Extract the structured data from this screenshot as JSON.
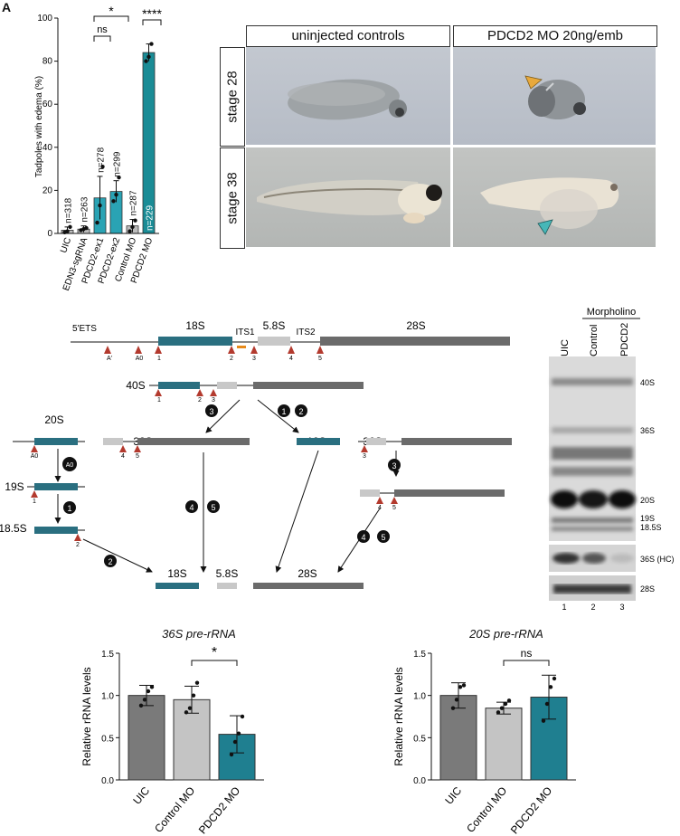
{
  "panel_label": "A",
  "edema_chart": {
    "ylabel": "Tadpoles with edema (%)",
    "y_ticks": [
      "0",
      "20",
      "40",
      "60",
      "80",
      "100"
    ],
    "categories": [
      "UIC",
      "EDN3-sgRNA",
      "PDCD2-ex1",
      "PDCD2-ex2",
      "Control MO",
      "PDCD2 MO"
    ],
    "n_labels": [
      "n=318",
      "n=263",
      "n=278",
      "n=299",
      "n=287",
      "n=229"
    ],
    "sig": {
      "star1": "*",
      "ns": "ns",
      "star4": "****"
    }
  },
  "chart_data": [
    {
      "type": "bar",
      "title": "",
      "ylabel": "Tadpoles with edema (%)",
      "ylim": [
        0,
        100
      ],
      "categories": [
        "UIC",
        "EDN3-sgRNA",
        "PDCD2-ex1",
        "PDCD2-ex2",
        "Control MO",
        "PDCD2 MO"
      ],
      "values": [
        1.5,
        2.0,
        16.5,
        19.5,
        3.5,
        84
      ],
      "errors": [
        1.5,
        1.5,
        10,
        5,
        3,
        4
      ],
      "points": [
        [
          0.5,
          1,
          3
        ],
        [
          1.5,
          2,
          2.5
        ],
        [
          5,
          13,
          31
        ],
        [
          15,
          18,
          26
        ],
        [
          1,
          3,
          6
        ],
        [
          80,
          82,
          88
        ]
      ]
    },
    {
      "type": "bar",
      "title": "36S pre-rRNA",
      "ylabel": "Relative rRNA levels",
      "ylim": [
        0,
        1.5
      ],
      "categories": [
        "UIC",
        "Control MO",
        "PDCD2 MO"
      ],
      "values": [
        1.0,
        0.95,
        0.54
      ],
      "errors": [
        0.12,
        0.16,
        0.22
      ],
      "points": [
        [
          0.88,
          0.95,
          1.05,
          1.1
        ],
        [
          0.8,
          0.85,
          1.0,
          1.15
        ],
        [
          0.3,
          0.45,
          0.55,
          0.75
        ]
      ]
    },
    {
      "type": "bar",
      "title": "20S pre-rRNA",
      "ylabel": "Relative rRNA levels",
      "ylim": [
        0,
        1.5
      ],
      "categories": [
        "UIC",
        "Control MO",
        "PDCD2 MO"
      ],
      "values": [
        1.0,
        0.85,
        0.98
      ],
      "errors": [
        0.15,
        0.07,
        0.26
      ],
      "points": [
        [
          0.85,
          0.95,
          1.1,
          1.12
        ],
        [
          0.8,
          0.85,
          0.9,
          0.94
        ],
        [
          0.7,
          0.9,
          1.1,
          1.2
        ]
      ]
    }
  ],
  "bar_ticks": [
    "0.0",
    "0.5",
    "1.0",
    "1.5"
  ],
  "photos": {
    "col1": "uninjected controls",
    "col2": "PDCD2 MO 20ng/emb",
    "row1": "stage 28",
    "row2": "stage 38"
  },
  "pathway": {
    "ets": "5'ETS",
    "s18": "18S",
    "its1": "ITS1",
    "s58": "5.8S",
    "its2": "ITS2",
    "s28": "28S",
    "sites": [
      "A'",
      "A0",
      "1",
      "2",
      "3",
      "4",
      "5"
    ],
    "s40": "40S",
    "s20": "20S",
    "s32": "32S",
    "s36": "36S",
    "s19": "19S",
    "s185": "18.5S",
    "steps": [
      "1",
      "2",
      "3",
      "4",
      "5",
      "A0"
    ]
  },
  "northern": {
    "header": "Morpholino",
    "lanes": [
      "UIC",
      "Control",
      "PDCD2"
    ],
    "bands": [
      "40S",
      "36S",
      "20S",
      "19S",
      "18.5S"
    ],
    "hc": "36S (HC)",
    "s28": "28S",
    "lane_nums": [
      "1",
      "2",
      "3"
    ]
  }
}
